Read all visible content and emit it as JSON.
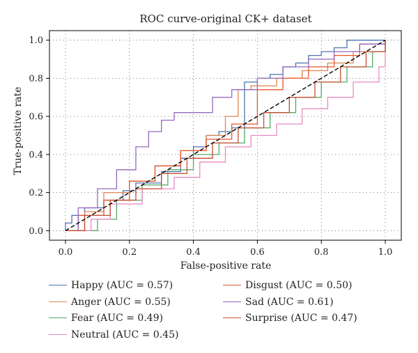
{
  "chart_data": {
    "type": "line",
    "title": "ROC curve-original CK+ dataset",
    "xlabel": "False-positive rate",
    "ylabel": "True-positive rate",
    "xlim": [
      -0.05,
      1.05
    ],
    "ylim": [
      -0.05,
      1.05
    ],
    "xticks": [
      "0.0",
      "0.2",
      "0.4",
      "0.6",
      "0.8",
      "1.0"
    ],
    "yticks": [
      "0.0",
      "0.2",
      "0.4",
      "0.6",
      "0.8",
      "1.0"
    ],
    "grid": true,
    "grid_style": "dotted",
    "legend_placement": "below",
    "diagonal": {
      "style": "dashed",
      "color": "#000000"
    },
    "series": [
      {
        "name": "Happy (AUC = 0.57)",
        "color": "#4c72b0",
        "x": [
          0,
          0,
          0.02,
          0.02,
          0.06,
          0.06,
          0.12,
          0.12,
          0.18,
          0.18,
          0.22,
          0.22,
          0.3,
          0.3,
          0.36,
          0.36,
          0.4,
          0.4,
          0.44,
          0.44,
          0.48,
          0.48,
          0.52,
          0.52,
          0.56,
          0.56,
          0.6,
          0.6,
          0.64,
          0.64,
          0.68,
          0.68,
          0.72,
          0.72,
          0.76,
          0.76,
          0.8,
          0.8,
          0.84,
          0.84,
          0.88,
          0.88,
          0.93,
          0.93,
          1.0
        ],
        "y": [
          0,
          0.04,
          0.04,
          0.08,
          0.08,
          0.12,
          0.12,
          0.16,
          0.16,
          0.21,
          0.21,
          0.25,
          0.25,
          0.31,
          0.31,
          0.38,
          0.38,
          0.44,
          0.44,
          0.5,
          0.5,
          0.52,
          0.52,
          0.54,
          0.54,
          0.78,
          0.78,
          0.8,
          0.8,
          0.82,
          0.82,
          0.86,
          0.86,
          0.88,
          0.88,
          0.92,
          0.92,
          0.94,
          0.94,
          0.96,
          0.96,
          1.0,
          1.0,
          1.0,
          1.0
        ]
      },
      {
        "name": "Anger (AUC = 0.55)",
        "color": "#dd8452",
        "x": [
          0,
          0.06,
          0.06,
          0.12,
          0.12,
          0.2,
          0.2,
          0.28,
          0.28,
          0.36,
          0.36,
          0.44,
          0.44,
          0.5,
          0.5,
          0.54,
          0.54,
          0.58,
          0.58,
          0.66,
          0.66,
          0.74,
          0.74,
          0.82,
          0.82,
          0.9,
          0.9,
          1.0,
          1.0
        ],
        "y": [
          0,
          0,
          0.1,
          0.1,
          0.2,
          0.2,
          0.26,
          0.26,
          0.34,
          0.34,
          0.42,
          0.42,
          0.5,
          0.5,
          0.6,
          0.6,
          0.74,
          0.74,
          0.76,
          0.76,
          0.8,
          0.8,
          0.84,
          0.84,
          0.88,
          0.88,
          0.94,
          0.94,
          1.0
        ]
      },
      {
        "name": "Fear (AUC = 0.49)",
        "color": "#55a868",
        "x": [
          0,
          0.1,
          0.1,
          0.16,
          0.16,
          0.24,
          0.24,
          0.32,
          0.32,
          0.4,
          0.4,
          0.48,
          0.48,
          0.56,
          0.56,
          0.64,
          0.64,
          0.72,
          0.72,
          0.8,
          0.8,
          0.88,
          0.88,
          0.96,
          0.96,
          1.0,
          1.0
        ],
        "y": [
          0,
          0,
          0.06,
          0.06,
          0.16,
          0.16,
          0.24,
          0.24,
          0.32,
          0.32,
          0.4,
          0.4,
          0.46,
          0.46,
          0.54,
          0.54,
          0.62,
          0.62,
          0.7,
          0.7,
          0.78,
          0.78,
          0.86,
          0.86,
          0.94,
          0.94,
          1.0
        ]
      },
      {
        "name": "Neutral (AUC = 0.45)",
        "color": "#e78ac3",
        "x": [
          0,
          0.08,
          0.08,
          0.14,
          0.14,
          0.24,
          0.24,
          0.34,
          0.34,
          0.42,
          0.42,
          0.5,
          0.5,
          0.58,
          0.58,
          0.66,
          0.66,
          0.74,
          0.74,
          0.82,
          0.82,
          0.9,
          0.9,
          0.98,
          0.98,
          1.0,
          1.0
        ],
        "y": [
          0,
          0,
          0.06,
          0.06,
          0.14,
          0.14,
          0.22,
          0.22,
          0.28,
          0.28,
          0.36,
          0.36,
          0.44,
          0.44,
          0.5,
          0.5,
          0.56,
          0.56,
          0.64,
          0.64,
          0.7,
          0.7,
          0.78,
          0.78,
          0.86,
          0.86,
          1.0
        ]
      },
      {
        "name": "Disgust (AUC = 0.50)",
        "color": "#e8562a",
        "x": [
          0,
          0.04,
          0.04,
          0.12,
          0.12,
          0.2,
          0.2,
          0.28,
          0.28,
          0.36,
          0.36,
          0.44,
          0.44,
          0.52,
          0.52,
          0.6,
          0.6,
          0.68,
          0.68,
          0.76,
          0.76,
          0.84,
          0.84,
          0.92,
          0.92,
          1.0,
          1.0
        ],
        "y": [
          0,
          0,
          0.08,
          0.08,
          0.16,
          0.16,
          0.26,
          0.26,
          0.34,
          0.34,
          0.42,
          0.42,
          0.48,
          0.48,
          0.56,
          0.56,
          0.74,
          0.74,
          0.8,
          0.8,
          0.86,
          0.86,
          0.92,
          0.92,
          0.98,
          0.98,
          1.0
        ]
      },
      {
        "name": "Sad (AUC = 0.61)",
        "color": "#9467bd",
        "x": [
          0,
          0.04,
          0.04,
          0.1,
          0.1,
          0.16,
          0.16,
          0.22,
          0.22,
          0.26,
          0.26,
          0.3,
          0.3,
          0.34,
          0.34,
          0.46,
          0.46,
          0.52,
          0.52,
          0.6,
          0.6,
          0.68,
          0.68,
          0.76,
          0.76,
          0.84,
          0.84,
          0.92,
          0.92,
          1.0,
          1.0
        ],
        "y": [
          0,
          0,
          0.12,
          0.12,
          0.22,
          0.22,
          0.32,
          0.32,
          0.44,
          0.44,
          0.52,
          0.52,
          0.58,
          0.58,
          0.62,
          0.62,
          0.7,
          0.7,
          0.74,
          0.74,
          0.8,
          0.8,
          0.86,
          0.86,
          0.9,
          0.9,
          0.94,
          0.94,
          0.98,
          0.98,
          1.0
        ]
      },
      {
        "name": "Surprise (AUC = 0.47)",
        "color": "#c44e32",
        "x": [
          0,
          0.06,
          0.06,
          0.14,
          0.14,
          0.22,
          0.22,
          0.3,
          0.3,
          0.38,
          0.38,
          0.46,
          0.46,
          0.54,
          0.54,
          0.62,
          0.62,
          0.7,
          0.7,
          0.78,
          0.78,
          0.86,
          0.86,
          0.94,
          0.94,
          1.0,
          1.0
        ],
        "y": [
          0,
          0,
          0.08,
          0.08,
          0.16,
          0.16,
          0.22,
          0.22,
          0.3,
          0.3,
          0.38,
          0.38,
          0.46,
          0.46,
          0.54,
          0.54,
          0.62,
          0.62,
          0.7,
          0.7,
          0.78,
          0.78,
          0.86,
          0.86,
          0.94,
          0.94,
          1.0
        ]
      }
    ]
  }
}
